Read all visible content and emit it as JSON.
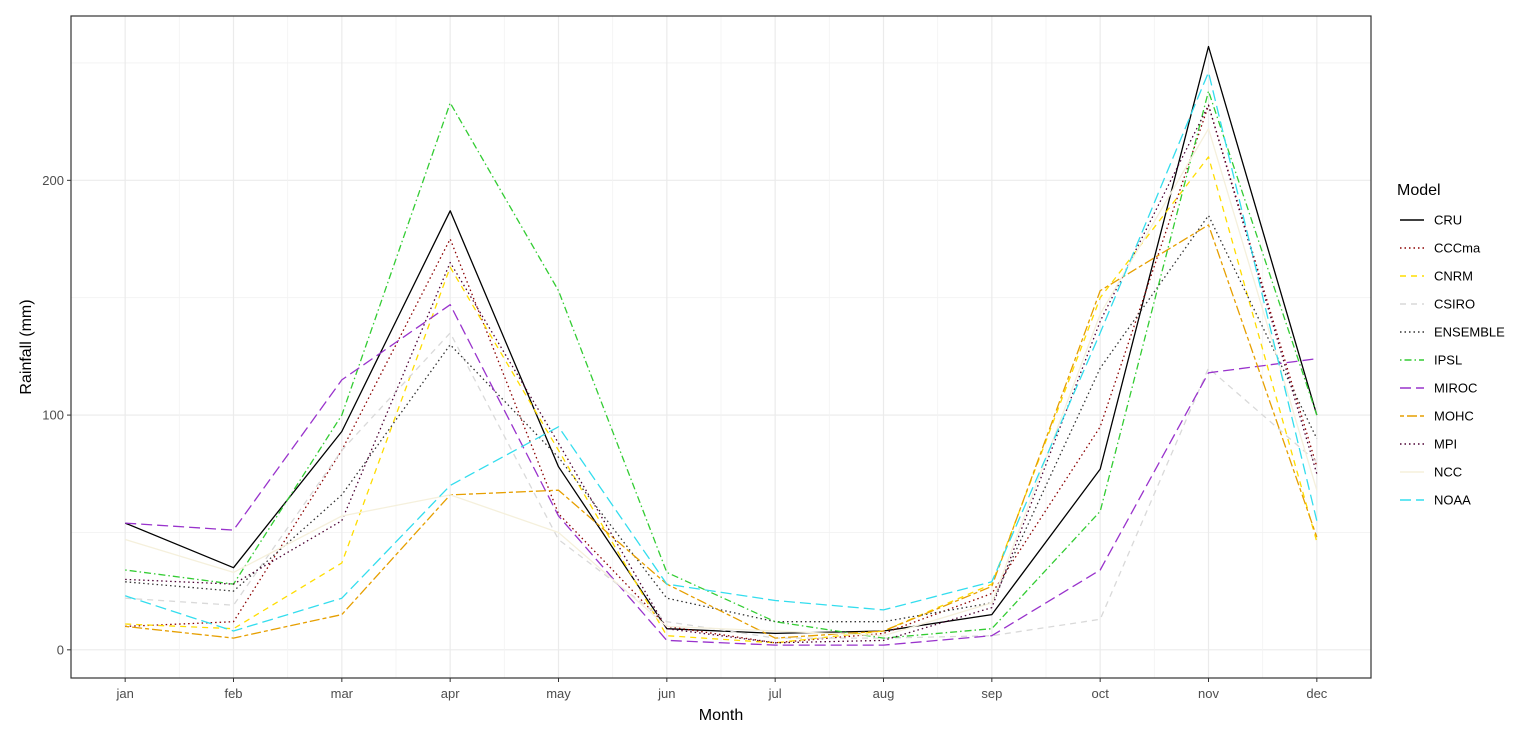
{
  "chart_data": {
    "type": "line",
    "xlabel": "Month",
    "ylabel": "Rainfall (mm)",
    "categories": [
      "jan",
      "feb",
      "mar",
      "apr",
      "may",
      "jun",
      "jul",
      "aug",
      "sep",
      "oct",
      "nov",
      "dec"
    ],
    "yticks": [
      0,
      100,
      200
    ],
    "ylim": [
      -12,
      270
    ],
    "grid": true,
    "legend": {
      "title": "Model",
      "position": "right"
    },
    "series": [
      {
        "name": "CRU",
        "color": "#000000",
        "dash": "solid",
        "values": [
          54,
          35,
          93,
          187,
          78,
          9,
          7,
          8,
          15,
          77,
          257,
          100
        ]
      },
      {
        "name": "CCCma",
        "color": "#8b0000",
        "dash": "dotted",
        "values": [
          10,
          12,
          85,
          175,
          58,
          10,
          3,
          7,
          24,
          95,
          232,
          78
        ]
      },
      {
        "name": "CNRM",
        "color": "#ffdd00",
        "dash": "dashed",
        "values": [
          11,
          9,
          37,
          163,
          85,
          6,
          3,
          8,
          28,
          150,
          210,
          46
        ]
      },
      {
        "name": "CSIRO",
        "color": "#d9d9d9",
        "dash": "dashed",
        "values": [
          22,
          19,
          85,
          135,
          47,
          12,
          5,
          5,
          6,
          13,
          120,
          80
        ]
      },
      {
        "name": "ENSEMBLE",
        "color": "#333333",
        "dash": "dotted",
        "values": [
          29,
          25,
          66,
          130,
          82,
          22,
          12,
          12,
          20,
          120,
          185,
          90
        ]
      },
      {
        "name": "IPSL",
        "color": "#33cc33",
        "dash": "dotdash",
        "values": [
          34,
          28,
          100,
          233,
          153,
          33,
          12,
          5,
          9,
          59,
          238,
          100
        ]
      },
      {
        "name": "MIROC",
        "color": "#9933cc",
        "dash": "longdash",
        "values": [
          54,
          51,
          115,
          147,
          57,
          4,
          2,
          2,
          6,
          34,
          118,
          124
        ]
      },
      {
        "name": "MOHC",
        "color": "#e69f00",
        "dash": "twodash",
        "values": [
          10,
          5,
          15,
          66,
          68,
          28,
          5,
          8,
          27,
          153,
          181,
          48
        ]
      },
      {
        "name": "MPI",
        "color": "#4b0033",
        "dash": "dotted",
        "values": [
          30,
          28,
          55,
          165,
          88,
          9,
          3,
          4,
          18,
          140,
          232,
          75
        ]
      },
      {
        "name": "NCC",
        "color": "#f5f0dc",
        "dash": "solid",
        "values": [
          47,
          33,
          57,
          66,
          50,
          10,
          8,
          6,
          20,
          143,
          222,
          68
        ]
      },
      {
        "name": "NOAA",
        "color": "#33ddee",
        "dash": "longdash",
        "values": [
          23,
          8,
          22,
          70,
          95,
          28,
          21,
          17,
          29,
          135,
          246,
          55
        ]
      }
    ]
  }
}
